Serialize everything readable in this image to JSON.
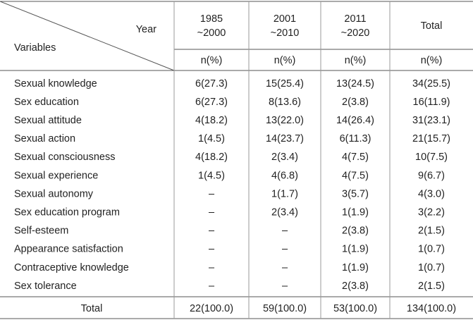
{
  "table": {
    "corner": {
      "top": "Year",
      "bottom": "Variables"
    },
    "columns": [
      {
        "lines": [
          "1985",
          "~2000"
        ],
        "unit": "n(%)"
      },
      {
        "lines": [
          "2001",
          "~2010"
        ],
        "unit": "n(%)"
      },
      {
        "lines": [
          "2011",
          "~2020"
        ],
        "unit": "n(%)"
      },
      {
        "lines": [
          "Total"
        ],
        "unit": "n(%)"
      }
    ],
    "rows": [
      [
        "Sexual knowledge",
        "6(27.3)",
        "15(25.4)",
        "13(24.5)",
        "34(25.5)"
      ],
      [
        "Sex education",
        "6(27.3)",
        "8(13.6)",
        "2(3.8)",
        "16(11.9)"
      ],
      [
        "Sexual attitude",
        "4(18.2)",
        "13(22.0)",
        "14(26.4)",
        "31(23.1)"
      ],
      [
        "Sexual action",
        "1(4.5)",
        "14(23.7)",
        "6(11.3)",
        "21(15.7)"
      ],
      [
        "Sexual consciousness",
        "4(18.2)",
        "2(3.4)",
        "4(7.5)",
        "10(7.5)"
      ],
      [
        "Sexual experience",
        "1(4.5)",
        "4(6.8)",
        "4(7.5)",
        "9(6.7)"
      ],
      [
        "Sexual autonomy",
        "–",
        "1(1.7)",
        "3(5.7)",
        "4(3.0)"
      ],
      [
        "Sex education program",
        "–",
        "2(3.4)",
        "1(1.9)",
        "3(2.2)"
      ],
      [
        "Self-esteem",
        "–",
        "–",
        "2(3.8)",
        "2(1.5)"
      ],
      [
        "Appearance satisfaction",
        "–",
        "–",
        "1(1.9)",
        "1(0.7)"
      ],
      [
        "Contraceptive knowledge",
        "–",
        "–",
        "1(1.9)",
        "1(0.7)"
      ],
      [
        "Sex tolerance",
        "–",
        "–",
        "2(3.8)",
        "2(1.5)"
      ]
    ],
    "total": [
      "Total",
      "22(100.0)",
      "59(100.0)",
      "53(100.0)",
      "134(100.0)"
    ]
  }
}
